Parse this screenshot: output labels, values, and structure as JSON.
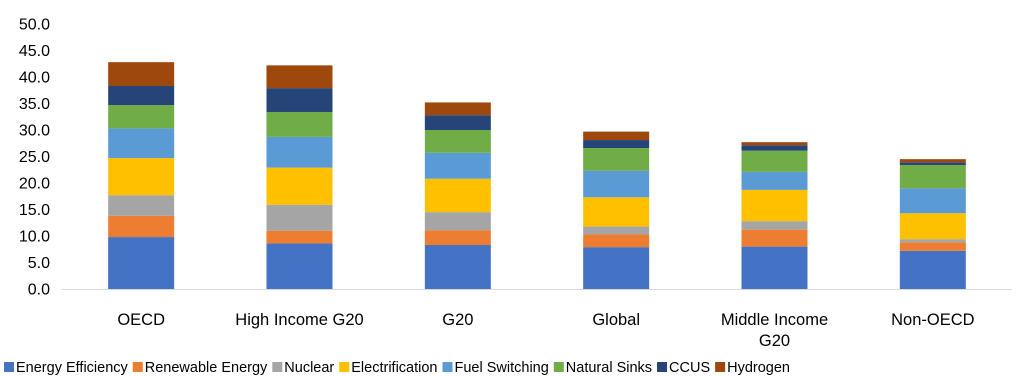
{
  "chart_data": {
    "type": "bar",
    "stacked": true,
    "title": "",
    "xlabel": "",
    "ylabel": "",
    "ylim": [
      0,
      50
    ],
    "yticks": [
      "0.0",
      "5.0",
      "10.0",
      "15.0",
      "20.0",
      "25.0",
      "30.0",
      "35.0",
      "40.0",
      "45.0",
      "50.0"
    ],
    "grid": false,
    "legend_position": "bottom",
    "categories": [
      "OECD",
      "High Income G20",
      "G20",
      "Global",
      "Middle Income G20",
      "Non-OECD"
    ],
    "series": [
      {
        "name": "Energy Efficiency",
        "color": "#4472C4",
        "values": [
          9.8,
          8.6,
          8.3,
          7.9,
          8.0,
          7.2
        ]
      },
      {
        "name": "Renewable Energy",
        "color": "#ED7D31",
        "values": [
          4.0,
          2.4,
          2.8,
          2.4,
          3.2,
          1.6
        ]
      },
      {
        "name": "Nuclear",
        "color": "#A5A5A5",
        "values": [
          3.9,
          4.9,
          3.4,
          1.5,
          1.6,
          0.6
        ]
      },
      {
        "name": "Electrification",
        "color": "#FFC000",
        "values": [
          7.0,
          7.0,
          6.3,
          5.5,
          5.9,
          4.9
        ]
      },
      {
        "name": "Fuel Switching",
        "color": "#5B9BD5",
        "values": [
          5.6,
          5.8,
          4.9,
          5.0,
          3.4,
          4.7
        ]
      },
      {
        "name": "Natural Sinks",
        "color": "#70AD47",
        "values": [
          4.4,
          4.7,
          4.3,
          4.3,
          4.0,
          4.4
        ]
      },
      {
        "name": "CCUS",
        "color": "#264478",
        "values": [
          3.6,
          4.5,
          2.8,
          1.5,
          1.0,
          0.5
        ]
      },
      {
        "name": "Hydrogen",
        "color": "#9E480E",
        "values": [
          4.5,
          4.3,
          2.4,
          1.6,
          0.6,
          0.6
        ]
      }
    ]
  }
}
